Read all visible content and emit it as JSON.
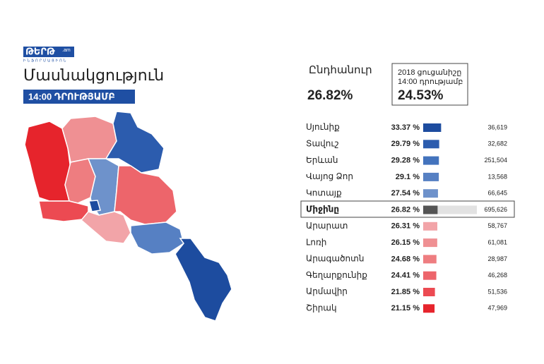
{
  "logo": {
    "name": "ԹԵՐԹ",
    "suffix": ".am",
    "tagline": "ԻՆՖՈՐՄԱՑԻՈՆ"
  },
  "title": "Մասնակցություն",
  "badge": "14:00 ԴՐՈՒԹՅԱՄԲ",
  "total": {
    "label": "Ընդհանուր",
    "value": "26.82%"
  },
  "previous": {
    "label": "2018 ցուցանիշը 14:00 դրությամբ",
    "value": "24.53%"
  },
  "chart_data": {
    "type": "bar",
    "categories": [
      "Սյունիք",
      "Տավուշ",
      "Երևան",
      "Վայոց Ձոր",
      "Կոտայք",
      "Արարատ",
      "Լոռի",
      "Արագածոտն",
      "Գեղարքունիք",
      "Արմավիր",
      "Շիրակ"
    ],
    "values": [
      33.37,
      29.79,
      29.28,
      29.1,
      27.54,
      26.31,
      26.15,
      24.68,
      24.41,
      21.85,
      21.15
    ],
    "value_labels": [
      "33.37 %",
      "29.79 %",
      "29.28 %",
      "29.1 %",
      "27.54 %",
      "26.31 %",
      "26.15 %",
      "24.68 %",
      "24.41 %",
      "21.85 %",
      "21.15 %"
    ],
    "voters": [
      "36,619",
      "32,682",
      "251,504",
      "13,568",
      "66,645",
      "58,767",
      "61,081",
      "28,987",
      "46,268",
      "51,536",
      "47,969"
    ],
    "colors": [
      "#1d4c9f",
      "#2c5cae",
      "#4373bd",
      "#5680c3",
      "#6e92cb",
      "#f2a4a8",
      "#ef9093",
      "#ee7d80",
      "#ed656b",
      "#ec4a52",
      "#e6242c"
    ],
    "average": {
      "name": "Միջինը",
      "value": 26.82,
      "value_label": "26.82 %",
      "voters": "695,626",
      "color": "#555555",
      "track": "#e2e2e2"
    },
    "xlim": [
      0,
      100
    ]
  }
}
